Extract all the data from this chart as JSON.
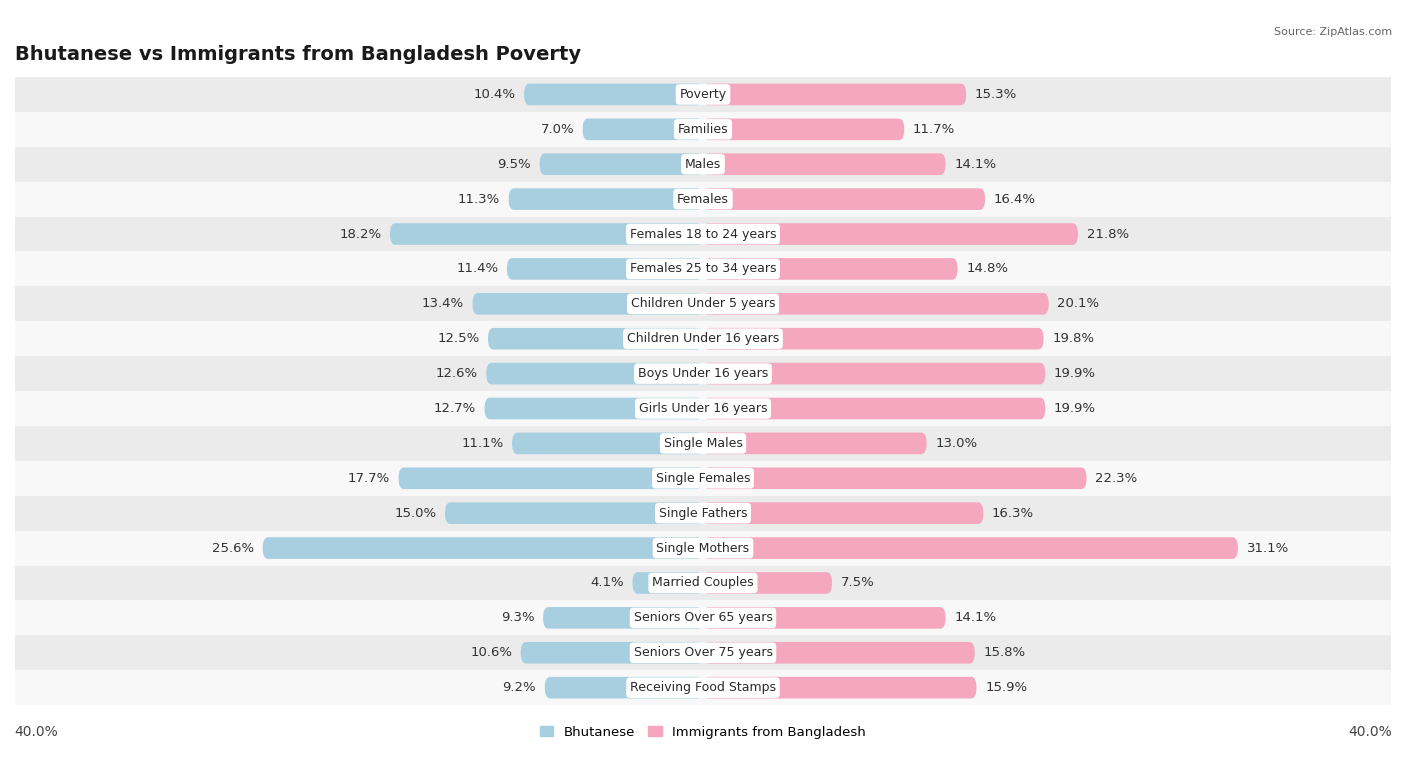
{
  "title": "Bhutanese vs Immigrants from Bangladesh Poverty",
  "source": "Source: ZipAtlas.com",
  "categories": [
    "Poverty",
    "Families",
    "Males",
    "Females",
    "Females 18 to 24 years",
    "Females 25 to 34 years",
    "Children Under 5 years",
    "Children Under 16 years",
    "Boys Under 16 years",
    "Girls Under 16 years",
    "Single Males",
    "Single Females",
    "Single Fathers",
    "Single Mothers",
    "Married Couples",
    "Seniors Over 65 years",
    "Seniors Over 75 years",
    "Receiving Food Stamps"
  ],
  "bhutanese": [
    10.4,
    7.0,
    9.5,
    11.3,
    18.2,
    11.4,
    13.4,
    12.5,
    12.6,
    12.7,
    11.1,
    17.7,
    15.0,
    25.6,
    4.1,
    9.3,
    10.6,
    9.2
  ],
  "bangladesh": [
    15.3,
    11.7,
    14.1,
    16.4,
    21.8,
    14.8,
    20.1,
    19.8,
    19.9,
    19.9,
    13.0,
    22.3,
    16.3,
    31.1,
    7.5,
    14.1,
    15.8,
    15.9
  ],
  "blue_color": "#a8cfe0",
  "pink_color": "#f4a7bf",
  "blue_label": "Bhutanese",
  "pink_label": "Immigrants from Bangladesh",
  "bg_row_light": "#ebebeb",
  "bg_row_white": "#f8f8f8",
  "xlim": 40.0,
  "bar_height": 0.62,
  "title_fontsize": 14,
  "label_fontsize": 9.5,
  "tick_fontsize": 10,
  "category_fontsize": 9
}
